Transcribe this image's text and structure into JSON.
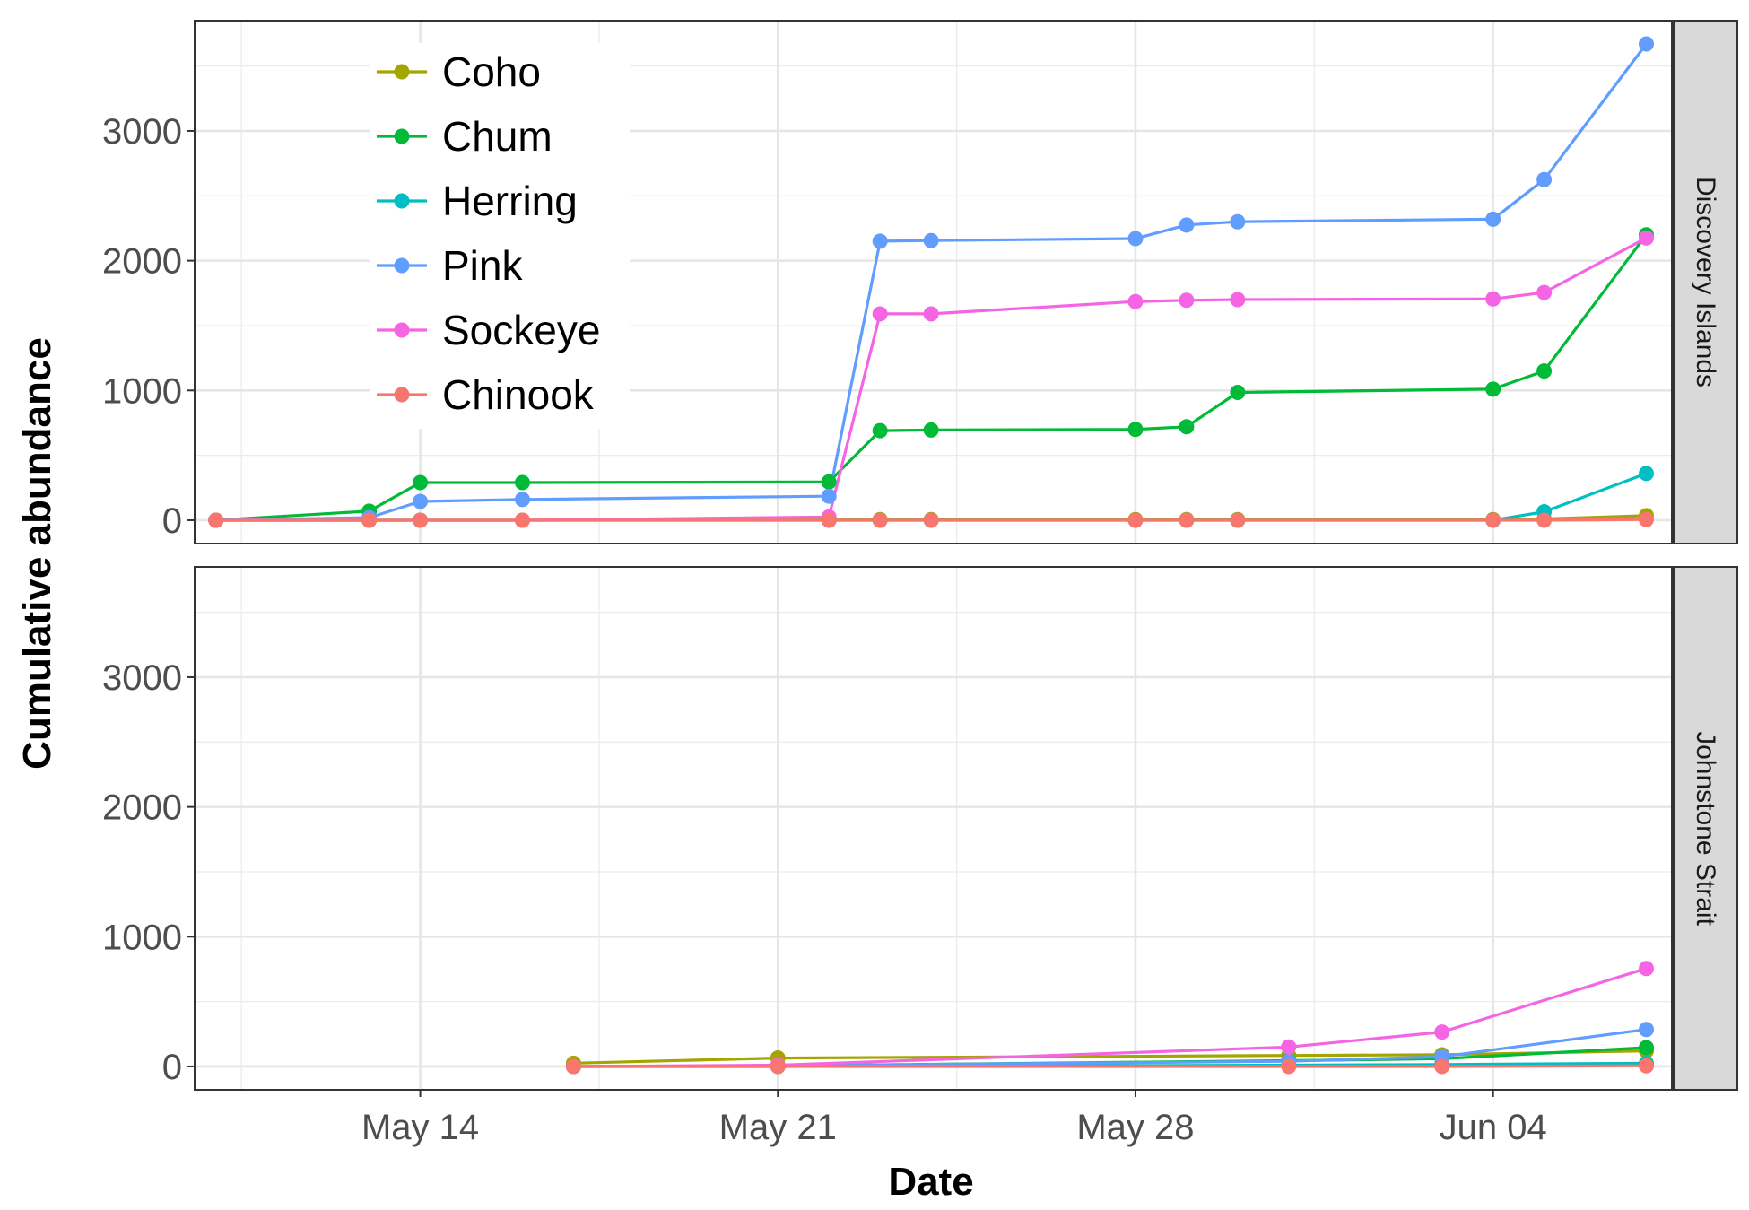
{
  "chart_data": {
    "type": "line",
    "xlabel": "Date",
    "ylabel": "Cumulative abundance",
    "x_tick_labels": [
      "May 14",
      "May 21",
      "May 28",
      "Jun 04"
    ],
    "x_tick_dates": [
      "2017-05-14",
      "2017-05-21",
      "2017-05-28",
      "2017-06-04"
    ],
    "x_range": [
      "2017-05-09T14:00",
      "2017-06-07T12:00"
    ],
    "y_ticks": [
      0,
      1000,
      2000,
      3000
    ],
    "ylim": [
      -180,
      3850
    ],
    "grid": true,
    "legend_position": "top-left",
    "legend": [
      "Coho",
      "Chum",
      "Herring",
      "Pink",
      "Sockeye",
      "Chinook"
    ],
    "colors": {
      "Coho": "#a3a500",
      "Chum": "#00ba38",
      "Herring": "#00bfc4",
      "Pink": "#619cff",
      "Sockeye": "#f564e3",
      "Chinook": "#f8766d"
    },
    "panels": [
      {
        "strip": "Discovery Islands",
        "series": [
          {
            "name": "Coho",
            "points": [
              [
                "2017-05-10",
                0
              ],
              [
                "2017-05-13",
                0
              ],
              [
                "2017-05-14",
                0
              ],
              [
                "2017-05-16",
                0
              ],
              [
                "2017-05-22",
                5
              ],
              [
                "2017-05-23",
                5
              ],
              [
                "2017-05-24",
                5
              ],
              [
                "2017-05-28",
                5
              ],
              [
                "2017-05-29",
                5
              ],
              [
                "2017-05-30",
                5
              ],
              [
                "2017-06-04",
                5
              ],
              [
                "2017-06-05",
                10
              ],
              [
                "2017-06-07",
                35
              ]
            ]
          },
          {
            "name": "Chum",
            "points": [
              [
                "2017-05-10",
                0
              ],
              [
                "2017-05-13",
                70
              ],
              [
                "2017-05-14",
                290
              ],
              [
                "2017-05-16",
                290
              ],
              [
                "2017-05-22",
                295
              ],
              [
                "2017-05-23",
                690
              ],
              [
                "2017-05-24",
                695
              ],
              [
                "2017-05-28",
                700
              ],
              [
                "2017-05-29",
                720
              ],
              [
                "2017-05-30",
                985
              ],
              [
                "2017-06-04",
                1010
              ],
              [
                "2017-06-05",
                1150
              ],
              [
                "2017-06-07",
                2200
              ]
            ]
          },
          {
            "name": "Herring",
            "points": [
              [
                "2017-05-10",
                0
              ],
              [
                "2017-05-13",
                0
              ],
              [
                "2017-05-14",
                0
              ],
              [
                "2017-05-16",
                0
              ],
              [
                "2017-05-22",
                0
              ],
              [
                "2017-05-23",
                0
              ],
              [
                "2017-05-24",
                0
              ],
              [
                "2017-05-28",
                0
              ],
              [
                "2017-05-29",
                0
              ],
              [
                "2017-05-30",
                0
              ],
              [
                "2017-06-04",
                0
              ],
              [
                "2017-06-05",
                65
              ],
              [
                "2017-06-07",
                360
              ]
            ]
          },
          {
            "name": "Pink",
            "points": [
              [
                "2017-05-10",
                0
              ],
              [
                "2017-05-13",
                20
              ],
              [
                "2017-05-14",
                145
              ],
              [
                "2017-05-16",
                160
              ],
              [
                "2017-05-22",
                185
              ],
              [
                "2017-05-23",
                2150
              ],
              [
                "2017-05-24",
                2155
              ],
              [
                "2017-05-28",
                2170
              ],
              [
                "2017-05-29",
                2275
              ],
              [
                "2017-05-30",
                2300
              ],
              [
                "2017-06-04",
                2320
              ],
              [
                "2017-06-05",
                2625
              ],
              [
                "2017-06-07",
                3670
              ]
            ]
          },
          {
            "name": "Sockeye",
            "points": [
              [
                "2017-05-10",
                0
              ],
              [
                "2017-05-13",
                0
              ],
              [
                "2017-05-14",
                0
              ],
              [
                "2017-05-16",
                0
              ],
              [
                "2017-05-22",
                25
              ],
              [
                "2017-05-23",
                1590
              ],
              [
                "2017-05-24",
                1590
              ],
              [
                "2017-05-28",
                1685
              ],
              [
                "2017-05-29",
                1695
              ],
              [
                "2017-05-30",
                1700
              ],
              [
                "2017-06-04",
                1705
              ],
              [
                "2017-06-05",
                1755
              ],
              [
                "2017-06-07",
                2175
              ]
            ]
          },
          {
            "name": "Chinook",
            "points": [
              [
                "2017-05-10",
                0
              ],
              [
                "2017-05-13",
                0
              ],
              [
                "2017-05-14",
                0
              ],
              [
                "2017-05-16",
                0
              ],
              [
                "2017-05-22",
                0
              ],
              [
                "2017-05-23",
                0
              ],
              [
                "2017-05-24",
                0
              ],
              [
                "2017-05-28",
                0
              ],
              [
                "2017-05-29",
                0
              ],
              [
                "2017-05-30",
                0
              ],
              [
                "2017-06-04",
                0
              ],
              [
                "2017-06-05",
                0
              ],
              [
                "2017-06-07",
                5
              ]
            ]
          }
        ]
      },
      {
        "strip": "Johnstone Strait",
        "series": [
          {
            "name": "Coho",
            "points": [
              [
                "2017-05-17",
                25
              ],
              [
                "2017-05-21",
                65
              ],
              [
                "2017-05-31",
                85
              ],
              [
                "2017-06-03",
                90
              ],
              [
                "2017-06-07",
                120
              ]
            ]
          },
          {
            "name": "Chum",
            "points": [
              [
                "2017-05-17",
                0
              ],
              [
                "2017-05-21",
                5
              ],
              [
                "2017-05-31",
                45
              ],
              [
                "2017-06-03",
                60
              ],
              [
                "2017-06-07",
                145
              ]
            ]
          },
          {
            "name": "Herring",
            "points": [
              [
                "2017-05-17",
                0
              ],
              [
                "2017-05-21",
                0
              ],
              [
                "2017-05-31",
                10
              ],
              [
                "2017-06-03",
                15
              ],
              [
                "2017-06-07",
                25
              ]
            ]
          },
          {
            "name": "Pink",
            "points": [
              [
                "2017-05-17",
                0
              ],
              [
                "2017-05-21",
                5
              ],
              [
                "2017-05-31",
                40
              ],
              [
                "2017-06-03",
                75
              ],
              [
                "2017-06-07",
                285
              ]
            ]
          },
          {
            "name": "Sockeye",
            "points": [
              [
                "2017-05-17",
                0
              ],
              [
                "2017-05-21",
                10
              ],
              [
                "2017-05-31",
                150
              ],
              [
                "2017-06-03",
                265
              ],
              [
                "2017-06-07",
                755
              ]
            ]
          },
          {
            "name": "Chinook",
            "points": [
              [
                "2017-05-17",
                0
              ],
              [
                "2017-05-21",
                0
              ],
              [
                "2017-05-31",
                0
              ],
              [
                "2017-06-03",
                0
              ],
              [
                "2017-06-07",
                5
              ]
            ]
          }
        ]
      }
    ]
  }
}
